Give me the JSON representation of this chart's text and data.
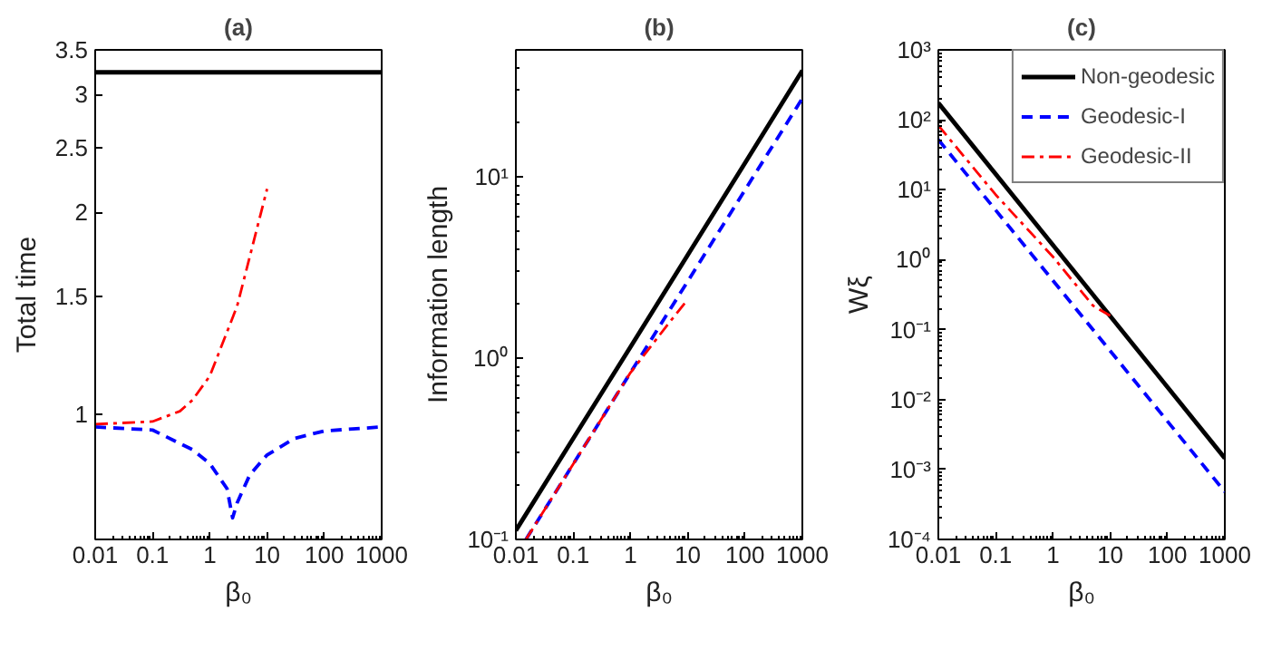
{
  "chart_data": [
    {
      "type": "line",
      "title": "(a)",
      "xlabel": "β₀",
      "ylabel": "Total time",
      "log": "xy",
      "grid": false,
      "legend": false,
      "xlim": [
        0.01,
        1000
      ],
      "ylim": [
        0.65,
        3.5
      ],
      "xticks": [
        0.01,
        0.1,
        1,
        10,
        100,
        1000
      ],
      "yticks": [
        1,
        1.5,
        2,
        2.5,
        3,
        3.5
      ],
      "series": [
        {
          "color": "#000000",
          "line_style": "solid",
          "x": [
            0.01,
            1000
          ],
          "values": [
            3.24,
            3.24
          ]
        },
        {
          "color": "#0000ff",
          "line_style": "dashed",
          "x": [
            0.01,
            0.1,
            0.5,
            1,
            2,
            2.5,
            3,
            5,
            10,
            30,
            100,
            1000
          ],
          "values": [
            0.957,
            0.947,
            0.885,
            0.844,
            0.774,
            0.7,
            0.737,
            0.812,
            0.869,
            0.92,
            0.944,
            0.957
          ]
        },
        {
          "color": "#ff0000",
          "line_style": "dashdot",
          "x": [
            0.01,
            0.1,
            0.3,
            0.5,
            1,
            3,
            5,
            10
          ],
          "values": [
            0.966,
            0.975,
            1.01,
            1.05,
            1.14,
            1.45,
            1.72,
            2.17
          ]
        }
      ]
    },
    {
      "type": "line",
      "title": "(b)",
      "xlabel": "β₀",
      "ylabel": "Information length",
      "log": "xy",
      "grid": false,
      "legend": false,
      "xlim": [
        0.01,
        1000
      ],
      "ylim": [
        0.1,
        50
      ],
      "xticks": [
        0.01,
        0.1,
        1,
        10,
        100,
        1000
      ],
      "yticks": [
        {
          "value": 0.1,
          "label": "10⁻¹"
        },
        {
          "value": 1,
          "label": "10⁰"
        },
        {
          "value": 10,
          "label": "10¹"
        }
      ],
      "series": [
        {
          "color": "#000000",
          "line_style": "solid",
          "x": [
            0.01,
            0.1,
            1,
            10,
            100,
            1000
          ],
          "values": [
            0.112,
            0.36,
            1.15,
            3.7,
            11.9,
            38.5
          ]
        },
        {
          "color": "#0000ff",
          "line_style": "dashed",
          "x": [
            0.015,
            0.1,
            1,
            5,
            10,
            100,
            1000
          ],
          "values": [
            0.1,
            0.26,
            0.83,
            1.87,
            2.65,
            8.45,
            27
          ]
        },
        {
          "color": "#ff0000",
          "line_style": "dashdot",
          "x": [
            0.015,
            0.1,
            1,
            5,
            10
          ],
          "values": [
            0.1,
            0.26,
            0.83,
            1.6,
            2.1
          ]
        }
      ]
    },
    {
      "type": "line",
      "title": "(c)",
      "xlabel": "β₀",
      "ylabel": "Wξ",
      "log": "xy",
      "grid": false,
      "legend": "top right",
      "xlim": [
        0.01,
        1000
      ],
      "ylim": [
        0.0001,
        1000
      ],
      "xticks": [
        0.01,
        0.1,
        1,
        10,
        100,
        1000
      ],
      "yticks": [
        {
          "value": 0.0001,
          "label": "10⁻⁴"
        },
        {
          "value": 0.001,
          "label": "10⁻³"
        },
        {
          "value": 0.01,
          "label": "10⁻²"
        },
        {
          "value": 0.1,
          "label": "10⁻¹"
        },
        {
          "value": 1,
          "label": "10⁰"
        },
        {
          "value": 10,
          "label": "10¹"
        },
        {
          "value": 100,
          "label": "10²"
        },
        {
          "value": 1000,
          "label": "10³"
        }
      ],
      "series": [
        {
          "name": "Non-geodesic",
          "color": "#000000",
          "line_style": "solid",
          "x": [
            0.01,
            1000
          ],
          "values": [
            174,
            0.00145
          ]
        },
        {
          "name": "Geodesic-I",
          "color": "#0000ff",
          "line_style": "dashed",
          "x": [
            0.01,
            1000
          ],
          "values": [
            52,
            0.00048
          ]
        },
        {
          "name": "Geodesic-II",
          "color": "#ff0000",
          "line_style": "dashdot",
          "x": [
            0.01,
            0.1,
            1,
            5,
            10
          ],
          "values": [
            83,
            8.5,
            1.1,
            0.22,
            0.158
          ]
        }
      ]
    }
  ]
}
